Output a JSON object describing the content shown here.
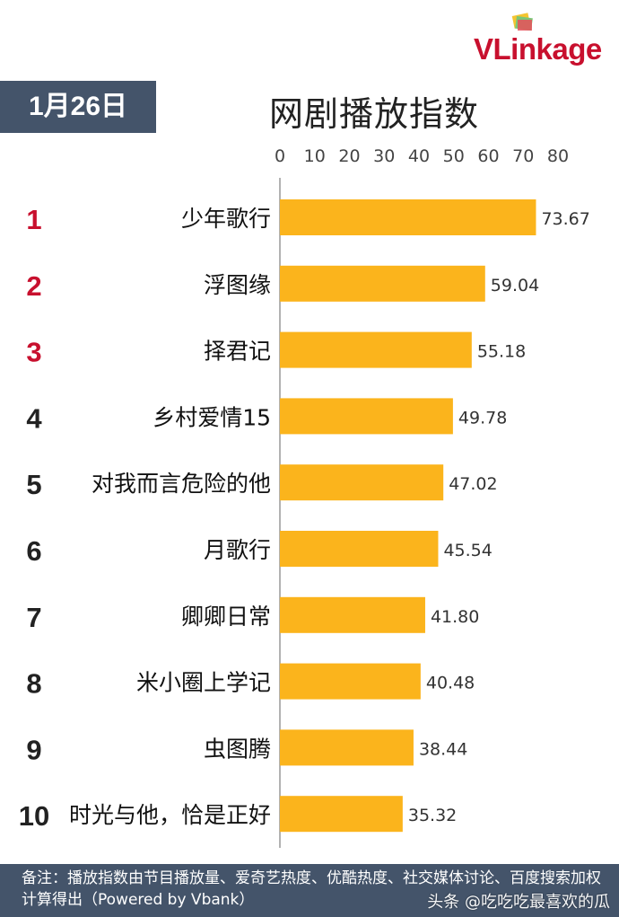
{
  "brand": {
    "logo_text_v": "VL",
    "logo_text_rest": "inkage"
  },
  "date_label": "1月26日",
  "chart_data": {
    "type": "bar",
    "orientation": "horizontal",
    "title": "网剧播放指数",
    "xlim": [
      0,
      80
    ],
    "xticks": [
      "0",
      "10",
      "20",
      "30",
      "40",
      "50",
      "60",
      "70",
      "80"
    ],
    "grid": false,
    "bar_color": "#fbb41c",
    "rank_colors": {
      "top3": "#c8102e",
      "rest": "#222222"
    },
    "ranks": [
      "1",
      "2",
      "3",
      "4",
      "5",
      "6",
      "7",
      "8",
      "9",
      "10"
    ],
    "categories": [
      "少年歌行",
      "浮图缘",
      "择君记",
      "乡村爱情15",
      "对我而言危险的他",
      "月歌行",
      "卿卿日常",
      "米小圈上学记",
      "虫图腾",
      "时光与他，恰是正好"
    ],
    "values": [
      73.67,
      59.04,
      55.18,
      49.78,
      47.02,
      45.54,
      41.8,
      40.48,
      38.44,
      35.32
    ],
    "value_labels": [
      "73.67",
      "59.04",
      "55.18",
      "49.78",
      "47.02",
      "45.54",
      "41.80",
      "40.48",
      "38.44",
      "35.32"
    ]
  },
  "footer": {
    "note": "备注：播放指数由节目播放量、爱奇艺热度、优酷热度、社交媒体讨论、百度搜索加权计算得出（Powered by Vbank）",
    "watermark": "头条 @吃吃吃最喜欢的瓜"
  }
}
